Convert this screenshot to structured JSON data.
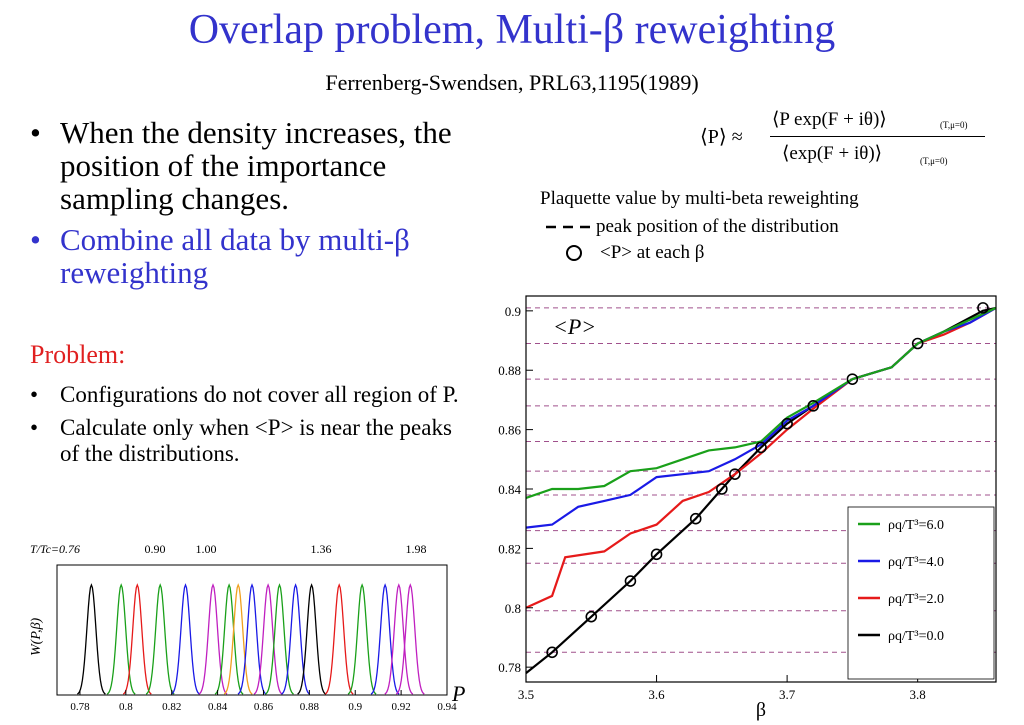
{
  "slide": {
    "title": "Overlap problem, Multi-β reweighting",
    "subtitle": "Ferrenberg-Swendsen, PRL63,1195(1989)"
  },
  "bullets_main": [
    "When the density increases, the position of the importance sampling changes.",
    "Combine all data by multi-β reweighting"
  ],
  "problem": {
    "heading": "Problem:",
    "items": [
      "Configurations do not cover all region of P.",
      "Calculate only when <P> is near the peaks of the distributions."
    ]
  },
  "formula": {
    "lhs": "⟨P⟩ ≈",
    "numerator": "⟨P exp(F + iθ)⟩",
    "denominator": "⟨exp(F + iθ)⟩",
    "subscript": "(T,μ=0)"
  },
  "legend_top": {
    "title": "Plaquette value by multi-beta reweighting",
    "dashed_label": "peak position of the distribution",
    "circle_label": "<P> at each β"
  },
  "colors": {
    "title_blue": "#3333cc",
    "problem_red": "#e02020",
    "dashed_purple": "#a0508c",
    "green": "#1aa01a",
    "blue": "#1a1ae6",
    "red": "#e61a1a",
    "black": "#000000",
    "magenta": "#c020c0",
    "orange": "#f0a020"
  },
  "chart_data": [
    {
      "type": "line",
      "in_plot_label": "<P>",
      "xlabel": "β",
      "xlim": [
        3.5,
        3.86
      ],
      "ylim": [
        0.775,
        0.905
      ],
      "x_ticks": [
        "3.5",
        "3.6",
        "3.7",
        "3.8"
      ],
      "y_ticks": [
        "0.78",
        "0.8",
        "0.82",
        "0.84",
        "0.86",
        "0.88",
        "0.9"
      ],
      "peak_lines": [
        0.785,
        0.799,
        0.815,
        0.826,
        0.838,
        0.846,
        0.856,
        0.868,
        0.877,
        0.889,
        0.901
      ],
      "legend": [
        "ρq/T³=6.0",
        "ρq/T³=4.0",
        "ρq/T³=2.0",
        "ρq/T³=0.0"
      ],
      "series": [
        {
          "name": "ρq/T³=6.0",
          "color": "#1aa01a",
          "x": [
            3.5,
            3.52,
            3.54,
            3.56,
            3.58,
            3.6,
            3.62,
            3.64,
            3.66,
            3.68,
            3.7,
            3.72,
            3.75,
            3.78,
            3.8,
            3.82,
            3.84,
            3.86
          ],
          "y": [
            0.837,
            0.84,
            0.84,
            0.841,
            0.846,
            0.847,
            0.85,
            0.853,
            0.854,
            0.856,
            0.864,
            0.869,
            0.877,
            0.881,
            0.889,
            0.893,
            0.897,
            0.901
          ]
        },
        {
          "name": "ρq/T³=4.0",
          "color": "#1a1ae6",
          "x": [
            3.5,
            3.52,
            3.54,
            3.56,
            3.58,
            3.6,
            3.62,
            3.64,
            3.66,
            3.68,
            3.7,
            3.72,
            3.75,
            3.78,
            3.8,
            3.82,
            3.84,
            3.86
          ],
          "y": [
            0.827,
            0.828,
            0.834,
            0.836,
            0.838,
            0.844,
            0.845,
            0.846,
            0.85,
            0.855,
            0.863,
            0.868,
            0.877,
            0.881,
            0.889,
            0.893,
            0.896,
            0.901
          ]
        },
        {
          "name": "ρq/T³=2.0",
          "color": "#e61a1a",
          "x": [
            3.5,
            3.52,
            3.53,
            3.56,
            3.58,
            3.6,
            3.62,
            3.64,
            3.66,
            3.68,
            3.7,
            3.72,
            3.75,
            3.78,
            3.8,
            3.82,
            3.84,
            3.86
          ],
          "y": [
            0.8,
            0.804,
            0.817,
            0.819,
            0.825,
            0.828,
            0.836,
            0.839,
            0.845,
            0.852,
            0.86,
            0.867,
            0.877,
            0.881,
            0.889,
            0.892,
            0.896,
            0.901
          ]
        },
        {
          "name": "ρq/T³=0.0",
          "color": "#000000",
          "x": [
            3.5,
            3.52,
            3.55,
            3.58,
            3.6,
            3.63,
            3.65,
            3.66,
            3.68,
            3.7,
            3.72,
            3.75,
            3.78,
            3.8,
            3.82,
            3.85,
            3.86
          ],
          "y": [
            0.778,
            0.785,
            0.797,
            0.809,
            0.818,
            0.83,
            0.84,
            0.845,
            0.854,
            0.862,
            0.868,
            0.877,
            0.881,
            0.889,
            0.893,
            0.9,
            0.901
          ]
        }
      ],
      "circle_points": {
        "x": [
          3.52,
          3.55,
          3.58,
          3.6,
          3.63,
          3.65,
          3.66,
          3.68,
          3.7,
          3.72,
          3.75,
          3.8,
          3.85
        ],
        "y": [
          0.785,
          0.797,
          0.809,
          0.818,
          0.83,
          0.84,
          0.845,
          0.854,
          0.862,
          0.868,
          0.877,
          0.889,
          0.901
        ]
      }
    },
    {
      "type": "line",
      "ylabel": "W(P,β)",
      "xlabel": "P",
      "xlim": [
        0.77,
        0.94
      ],
      "x_ticks": [
        "0.78",
        "0.8",
        "0.82",
        "0.84",
        "0.86",
        "0.88",
        "0.9",
        "0.92",
        "0.94"
      ],
      "top_label": "T/Tc=0.76",
      "top_ticks": [
        "0.90",
        "1.00",
        "1.36",
        "1.98"
      ],
      "peaks": [
        {
          "center": 0.785,
          "color": "#000000"
        },
        {
          "center": 0.798,
          "color": "#1aa01a"
        },
        {
          "center": 0.805,
          "color": "#e61a1a"
        },
        {
          "center": 0.815,
          "color": "#1aa01a"
        },
        {
          "center": 0.826,
          "color": "#1a1ae6"
        },
        {
          "center": 0.838,
          "color": "#c020c0"
        },
        {
          "center": 0.845,
          "color": "#1aa01a"
        },
        {
          "center": 0.849,
          "color": "#f0a020"
        },
        {
          "center": 0.855,
          "color": "#1a1ae6"
        },
        {
          "center": 0.862,
          "color": "#c020c0"
        },
        {
          "center": 0.867,
          "color": "#1aa01a"
        },
        {
          "center": 0.874,
          "color": "#1a1ae6"
        },
        {
          "center": 0.881,
          "color": "#000000"
        },
        {
          "center": 0.893,
          "color": "#e61a1a"
        },
        {
          "center": 0.903,
          "color": "#1aa01a"
        },
        {
          "center": 0.913,
          "color": "#1a1ae6"
        },
        {
          "center": 0.919,
          "color": "#c020c0"
        },
        {
          "center": 0.924,
          "color": "#c020c0"
        }
      ]
    }
  ]
}
